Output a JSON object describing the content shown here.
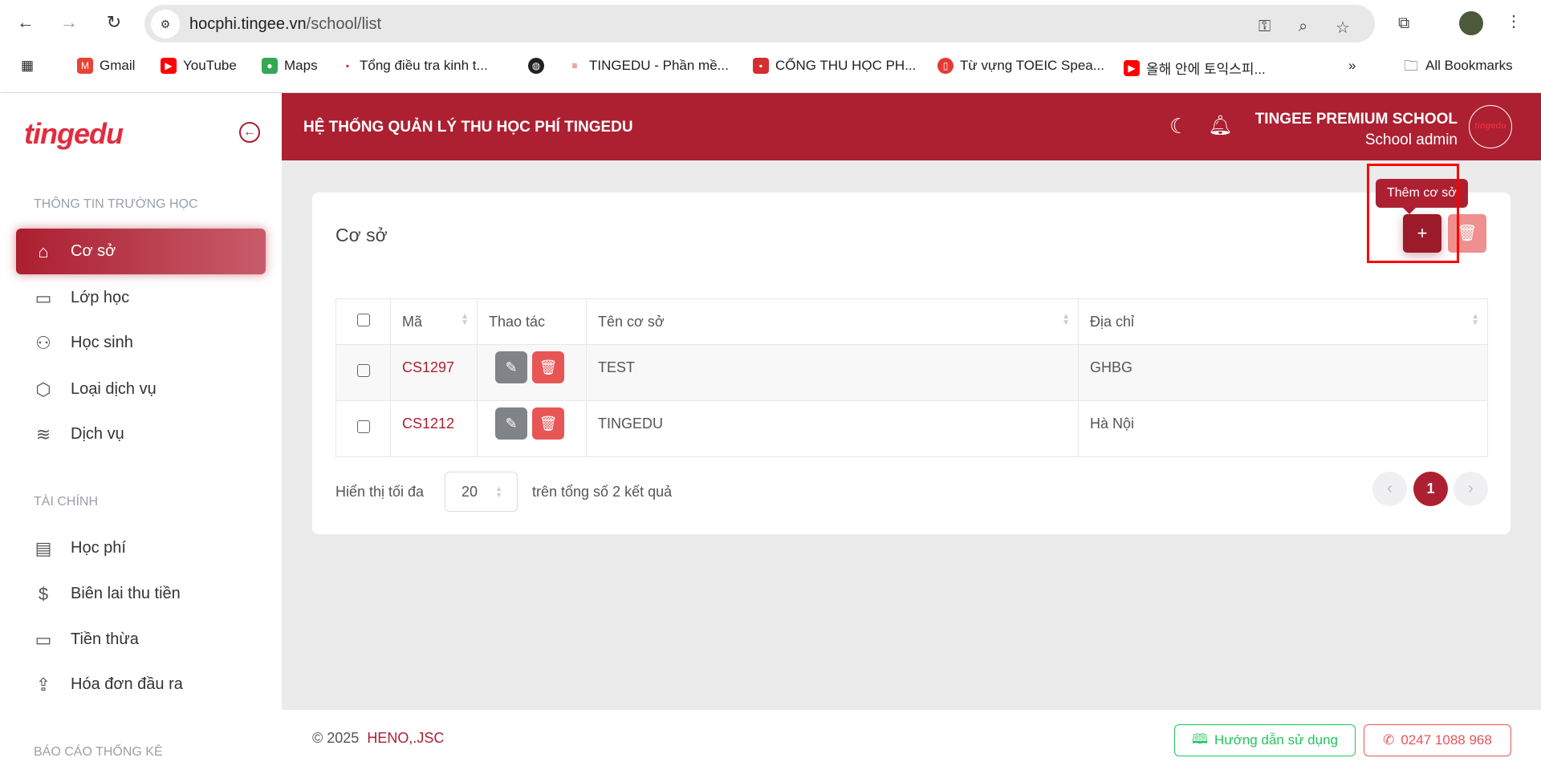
{
  "browser": {
    "url_host": "hocphi.tingee.vn",
    "url_path": "/school/list",
    "bookmarks": [
      "Gmail",
      "YouTube",
      "Maps",
      "Tổng điều tra kinh t...",
      "TINGEDU - Phần mề...",
      "CỔNG THU HỌC PH...",
      "Từ vựng TOEIC Spea...",
      "올해 안에 토익스피...",
      "All Bookmarks"
    ],
    "more": "»"
  },
  "sidebar": {
    "logo": "tingedu",
    "sections": [
      {
        "title": "THÔNG TIN TRƯỜNG HỌC",
        "items": [
          {
            "label": "Cơ sở",
            "icon": "home-icon",
            "active": true
          },
          {
            "label": "Lớp học",
            "icon": "briefcase-icon"
          },
          {
            "label": "Học sinh",
            "icon": "users-icon"
          },
          {
            "label": "Loại dịch vụ",
            "icon": "box-icon"
          },
          {
            "label": "Dịch vụ",
            "icon": "layers-icon"
          }
        ]
      },
      {
        "title": "TÀI CHÍNH",
        "items": [
          {
            "label": "Học phí",
            "icon": "document-icon"
          },
          {
            "label": "Biên lai thu tiền",
            "icon": "dollar-icon"
          },
          {
            "label": "Tiền thừa",
            "icon": "credit-card-icon"
          },
          {
            "label": "Hóa đơn đầu ra",
            "icon": "upload-icon"
          }
        ]
      },
      {
        "title": "BÁO CÁO THỐNG KÊ",
        "items": []
      }
    ]
  },
  "header": {
    "title": "HỆ THỐNG QUẢN LÝ THU HỌC PHÍ TINGEDU",
    "school": "TINGEE PREMIUM SCHOOL",
    "role": "School admin"
  },
  "page": {
    "title": "Cơ sở",
    "add_tooltip": "Thêm cơ sở",
    "add_label": "+",
    "columns": [
      "Mã",
      "Thao tác",
      "Tên cơ sở",
      "Địa chỉ"
    ],
    "rows": [
      {
        "code": "CS1297",
        "name": "TEST",
        "address": "GHBG"
      },
      {
        "code": "CS1212",
        "name": "TINGEDU",
        "address": "Hà Nội"
      }
    ],
    "show_label": "Hiển thị tối đa",
    "page_size": "20",
    "total_text": "trên tổng số 2 kết quả",
    "current_page": "1"
  },
  "footer": {
    "copyright": "© 2025",
    "company": "HENO,.JSC",
    "guide": "Hướng dẫn sử dụng",
    "phone": "0247 1088 968"
  },
  "colors": {
    "brand": "#ad2031",
    "danger": "#e85555",
    "success": "#22c55e"
  }
}
